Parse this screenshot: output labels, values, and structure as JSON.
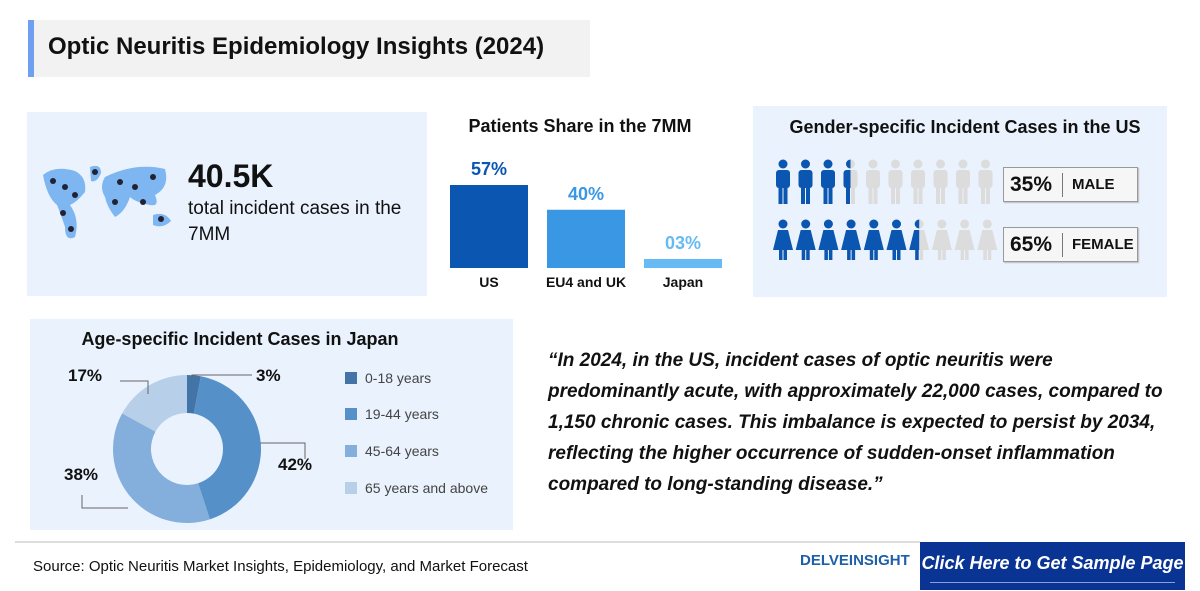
{
  "title": "Optic Neuritis Epidemiology Insights (2024)",
  "total": {
    "value": "40.5K",
    "label": "total incident cases in the 7MM",
    "icon": "world-map-people-icon"
  },
  "gender": {
    "title": "Gender-specific Incident Cases in the US",
    "rows": [
      {
        "pct": "35%",
        "label": "MALE",
        "fraction": 0.35,
        "icon": "male-person-icon"
      },
      {
        "pct": "65%",
        "label": "FEMALE",
        "fraction": 0.65,
        "icon": "female-person-icon"
      }
    ],
    "colors": {
      "filled": "#0a56b0",
      "empty": "#dcdcdc"
    }
  },
  "quote": "“In 2024, in the US, incident cases of optic neuritis were predominantly acute, with approximately 22,000 cases, compared to 1,150 chronic cases. This imbalance is expected to persist by 2034, reflecting the higher occurrence of sudden-onset inflammation compared to long-standing disease.”",
  "footer": {
    "source": "Source: Optic Neuritis Market Insights, Epidemiology, and Market Forecast",
    "logo": "DELVEINSIGHT",
    "cta": "Click Here to Get Sample Page"
  },
  "chart_data": [
    {
      "type": "bar",
      "title": "Patients Share in the 7MM",
      "categories": [
        "US",
        "EU4 and UK",
        "Japan"
      ],
      "values": [
        57,
        40,
        3
      ],
      "labels": [
        "57%",
        "40%",
        "03%"
      ],
      "colors": [
        "#0a56b0",
        "#3a97e4",
        "#66bbf5"
      ],
      "grid": false
    },
    {
      "type": "pie",
      "title": "Age-specific Incident Cases in Japan",
      "categories": [
        "0-18 years",
        "19-44 years",
        "45-64 years",
        "65 years and above"
      ],
      "values": [
        3,
        42,
        38,
        17
      ],
      "labels": [
        "3%",
        "42%",
        "38%",
        "17%"
      ],
      "colors": [
        "#4274a8",
        "#5591c8",
        "#84aedc",
        "#b8cfe9"
      ],
      "legend": "right"
    }
  ]
}
